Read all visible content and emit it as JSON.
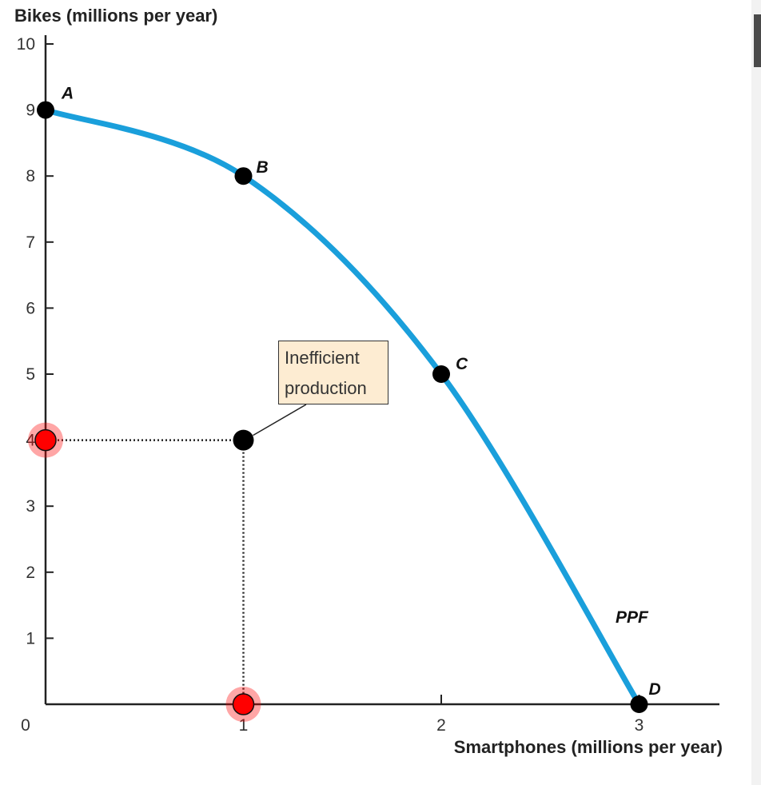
{
  "chart_data": {
    "type": "line",
    "ylabel": "Bikes (millions per year)",
    "xlabel": "Smartphones (millions per year)",
    "xlim": [
      0,
      3.4
    ],
    "ylim": [
      0,
      10
    ],
    "x_ticks": [
      {
        "value": 0,
        "label": "0"
      },
      {
        "value": 1,
        "label": "1"
      },
      {
        "value": 2,
        "label": "2"
      },
      {
        "value": 3,
        "label": "3"
      }
    ],
    "y_ticks": [
      {
        "value": 1,
        "label": "1"
      },
      {
        "value": 2,
        "label": "2"
      },
      {
        "value": 3,
        "label": "3"
      },
      {
        "value": 4,
        "label": "4"
      },
      {
        "value": 5,
        "label": "5"
      },
      {
        "value": 6,
        "label": "6"
      },
      {
        "value": 7,
        "label": "7"
      },
      {
        "value": 8,
        "label": "8"
      },
      {
        "value": 9,
        "label": "9"
      },
      {
        "value": 10,
        "label": "10"
      }
    ],
    "series": [
      {
        "name": "PPF",
        "color": "#1a9fdb",
        "x": [
          0,
          1,
          2,
          3
        ],
        "y": [
          9,
          8,
          5,
          0
        ]
      }
    ],
    "points": [
      {
        "label": "A",
        "x": 0,
        "y": 9
      },
      {
        "label": "B",
        "x": 1,
        "y": 8
      },
      {
        "label": "C",
        "x": 2,
        "y": 5
      },
      {
        "label": "D",
        "x": 3,
        "y": 0
      }
    ],
    "inefficient_point": {
      "x": 1,
      "y": 4
    },
    "axis_markers": [
      {
        "axis": "y",
        "value": 4,
        "color": "#ff0000"
      },
      {
        "axis": "x",
        "value": 1,
        "color": "#ff0000"
      }
    ],
    "annotation": {
      "line1": "Inefficient",
      "line2": "production"
    },
    "grid": false
  }
}
